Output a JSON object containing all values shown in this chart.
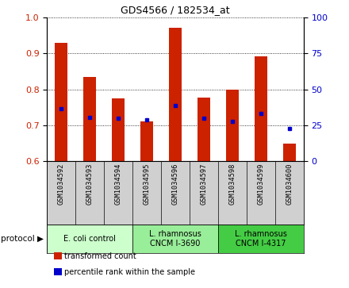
{
  "title": "GDS4566 / 182534_at",
  "samples": [
    "GSM1034592",
    "GSM1034593",
    "GSM1034594",
    "GSM1034595",
    "GSM1034596",
    "GSM1034597",
    "GSM1034598",
    "GSM1034599",
    "GSM1034600"
  ],
  "transformed_count": [
    0.93,
    0.835,
    0.775,
    0.71,
    0.97,
    0.778,
    0.798,
    0.892,
    0.65
  ],
  "percentile_rank": [
    0.745,
    0.722,
    0.72,
    0.715,
    0.754,
    0.72,
    0.71,
    0.732,
    0.692
  ],
  "bar_bottom": 0.6,
  "ylim_left": [
    0.6,
    1.0
  ],
  "ylim_right": [
    0,
    100
  ],
  "yticks_left": [
    0.6,
    0.7,
    0.8,
    0.9,
    1.0
  ],
  "yticks_right": [
    0,
    25,
    50,
    75,
    100
  ],
  "bar_color": "#cc2200",
  "percentile_color": "#0000cc",
  "sample_bg_color": "#d0d0d0",
  "protocol_groups": [
    {
      "label": "E. coli control",
      "start": 0,
      "end": 3,
      "color": "#ccffcc"
    },
    {
      "label": "L. rhamnosus\nCNCM I-3690",
      "start": 3,
      "end": 6,
      "color": "#99ee99"
    },
    {
      "label": "L. rhamnosus\nCNCM I-4317",
      "start": 6,
      "end": 9,
      "color": "#44cc44"
    }
  ],
  "legend_items": [
    {
      "label": "transformed count",
      "color": "#cc2200"
    },
    {
      "label": "percentile rank within the sample",
      "color": "#0000cc"
    }
  ],
  "protocol_label": "protocol"
}
